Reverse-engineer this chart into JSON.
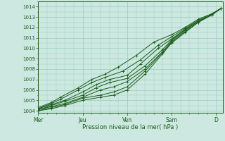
{
  "bg_color": "#cce8e0",
  "grid_color": "#99ccbb",
  "line_color": "#1a5c1a",
  "xlabel": "Pression niveau de la mer( hPa )",
  "ylim": [
    1003.8,
    1014.5
  ],
  "yticks": [
    1004,
    1005,
    1006,
    1007,
    1008,
    1009,
    1010,
    1011,
    1012,
    1013,
    1014
  ],
  "xtick_labels": [
    "Mer",
    "Jeu",
    "Ven",
    "Sam",
    "D"
  ],
  "xtick_positions": [
    0.0,
    1.0,
    2.0,
    3.0,
    4.0
  ],
  "xlim": [
    0.0,
    4.15
  ],
  "lines": [
    {
      "x": [
        0.0,
        0.3,
        0.6,
        1.0,
        1.4,
        1.7,
        2.0,
        2.4,
        2.8,
        3.0,
        3.3,
        3.6,
        3.9,
        4.1
      ],
      "y": [
        1004.0,
        1004.2,
        1004.5,
        1005.0,
        1005.3,
        1005.5,
        1006.0,
        1007.5,
        1009.5,
        1010.5,
        1011.5,
        1012.5,
        1013.2,
        1013.8
      ]
    },
    {
      "x": [
        0.0,
        0.3,
        0.6,
        1.0,
        1.4,
        1.7,
        2.0,
        2.4,
        2.8,
        3.0,
        3.3,
        3.6,
        3.9,
        4.1
      ],
      "y": [
        1004.0,
        1004.3,
        1004.6,
        1005.2,
        1005.5,
        1005.8,
        1006.3,
        1007.8,
        1009.6,
        1010.6,
        1011.6,
        1012.5,
        1013.2,
        1013.8
      ]
    },
    {
      "x": [
        0.0,
        0.3,
        0.6,
        1.0,
        1.4,
        1.7,
        2.0,
        2.4,
        2.8,
        3.0,
        3.3,
        3.6,
        3.9,
        4.1
      ],
      "y": [
        1004.1,
        1004.4,
        1004.7,
        1005.3,
        1006.0,
        1006.3,
        1006.8,
        1008.0,
        1009.7,
        1010.7,
        1011.7,
        1012.6,
        1013.2,
        1013.8
      ]
    },
    {
      "x": [
        0.0,
        0.3,
        0.6,
        1.0,
        1.3,
        1.6,
        2.0,
        2.4,
        2.8,
        3.0,
        3.3,
        3.6,
        3.9,
        4.1
      ],
      "y": [
        1004.1,
        1004.5,
        1004.9,
        1005.5,
        1006.2,
        1006.7,
        1007.1,
        1008.3,
        1009.9,
        1010.8,
        1011.8,
        1012.6,
        1013.2,
        1013.8
      ]
    },
    {
      "x": [
        0.0,
        0.3,
        0.6,
        1.0,
        1.3,
        1.6,
        2.0,
        2.3,
        2.7,
        3.0,
        3.3,
        3.6,
        3.9,
        4.1
      ],
      "y": [
        1004.2,
        1004.6,
        1005.0,
        1005.8,
        1006.5,
        1007.0,
        1007.4,
        1008.5,
        1010.0,
        1010.9,
        1011.8,
        1012.6,
        1013.2,
        1013.8
      ]
    },
    {
      "x": [
        0.0,
        0.3,
        0.5,
        0.9,
        1.2,
        1.5,
        1.9,
        2.3,
        2.7,
        3.0,
        3.3,
        3.6,
        3.9,
        4.1
      ],
      "y": [
        1004.2,
        1004.7,
        1005.1,
        1006.0,
        1006.7,
        1007.2,
        1007.8,
        1008.9,
        1010.3,
        1011.1,
        1011.9,
        1012.7,
        1013.3,
        1013.8
      ]
    },
    {
      "x": [
        0.0,
        0.3,
        0.5,
        0.9,
        1.2,
        1.5,
        1.8,
        2.2,
        2.6,
        3.0,
        3.3,
        3.6,
        3.9,
        4.1
      ],
      "y": [
        1004.3,
        1004.8,
        1005.3,
        1006.2,
        1007.0,
        1007.5,
        1008.2,
        1009.3,
        1010.6,
        1011.3,
        1012.0,
        1012.8,
        1013.3,
        1013.8
      ]
    }
  ]
}
